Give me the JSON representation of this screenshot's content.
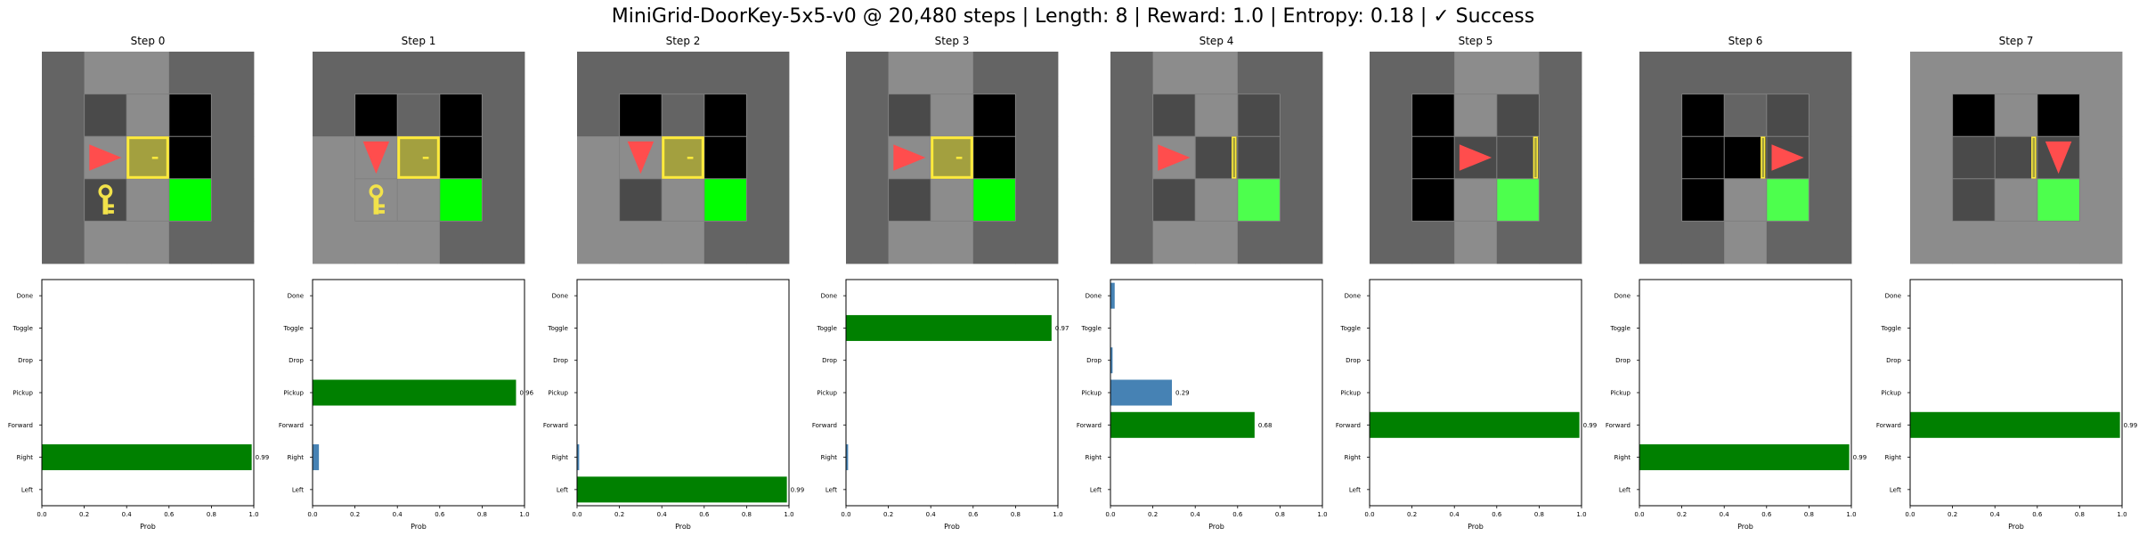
{
  "title": "MiniGrid-DoorKey-5x5-v0 @ 20,480 steps | Length: 8 | Reward: 1.0 | Entropy: 0.18 | ✓ Success",
  "colors": {
    "wall": "#646464",
    "floor": "#8c8c8c",
    "unseen": "#000000",
    "dark": "#4a4a4a",
    "gridline": "#808080",
    "goal": "#00ff00",
    "goal_dim": "#4dff4d",
    "door_fill": "#a3a03f",
    "door_border": "#ffeb3b",
    "key": "#f2e24a",
    "agent": "#ff4d4d",
    "bar_selected": "#008000",
    "bar_other": "#4682b4",
    "axes": "#000000"
  },
  "chart_data": [
    {
      "type": "bar",
      "orientation": "horizontal",
      "title": "Step 0",
      "categories": [
        "Left",
        "Right",
        "Forward",
        "Pickup",
        "Drop",
        "Toggle",
        "Done"
      ],
      "values": [
        0,
        0.99,
        0,
        0,
        0,
        0,
        0
      ],
      "selected": "Right",
      "value_labels": {
        "Right": "0.99"
      },
      "xlabel": "Prob",
      "xlim": [
        0,
        1
      ],
      "xticks": [
        "0.0",
        "0.2",
        "0.4",
        "0.6",
        "0.8",
        "1.0"
      ],
      "grid": false,
      "frame": {
        "cells": [
          [
            "wall",
            "floor",
            "floor",
            "wall",
            "wall"
          ],
          [
            "wall",
            "dark",
            "floor",
            "unseen",
            "wall"
          ],
          [
            "wall",
            "floor",
            "door",
            "unseen",
            "wall"
          ],
          [
            "wall",
            "dark",
            "floor",
            "goal",
            "wall"
          ],
          [
            "wall",
            "floor",
            "floor",
            "wall",
            "wall"
          ]
        ],
        "grid_rows": [
          1,
          3
        ],
        "grid_cols": [
          1,
          3
        ],
        "agent": {
          "row": 2,
          "col": 1,
          "dir": "right"
        },
        "key": {
          "row": 3,
          "col": 1
        },
        "door": {
          "row": 2,
          "col": 2,
          "state": "closed"
        }
      }
    },
    {
      "type": "bar",
      "orientation": "horizontal",
      "title": "Step 1",
      "categories": [
        "Left",
        "Right",
        "Forward",
        "Pickup",
        "Drop",
        "Toggle",
        "Done"
      ],
      "values": [
        0,
        0.03,
        0,
        0.96,
        0,
        0,
        0
      ],
      "selected": "Pickup",
      "value_labels": {
        "Pickup": "0.96"
      },
      "xlabel": "Prob",
      "xlim": [
        0,
        1
      ],
      "xticks": [
        "0.0",
        "0.2",
        "0.4",
        "0.6",
        "0.8",
        "1.0"
      ],
      "grid": false,
      "frame": {
        "cells": [
          [
            "wall",
            "wall",
            "wall",
            "wall",
            "wall"
          ],
          [
            "wall",
            "unseen",
            "wall",
            "unseen",
            "wall"
          ],
          [
            "floor",
            "floor",
            "door",
            "unseen",
            "wall"
          ],
          [
            "floor",
            "floor",
            "floor",
            "goal",
            "wall"
          ],
          [
            "floor",
            "floor",
            "floor",
            "wall",
            "wall"
          ]
        ],
        "grid_rows": [
          1,
          3
        ],
        "grid_cols": [
          1,
          3
        ],
        "agent": {
          "row": 2,
          "col": 1,
          "dir": "down"
        },
        "key": {
          "row": 3,
          "col": 1
        },
        "door": {
          "row": 2,
          "col": 2,
          "state": "closed"
        }
      }
    },
    {
      "type": "bar",
      "orientation": "horizontal",
      "title": "Step 2",
      "categories": [
        "Left",
        "Right",
        "Forward",
        "Pickup",
        "Drop",
        "Toggle",
        "Done"
      ],
      "values": [
        0.99,
        0.01,
        0,
        0,
        0,
        0,
        0
      ],
      "selected": "Left",
      "value_labels": {
        "Left": "0.99"
      },
      "xlabel": "Prob",
      "xlim": [
        0,
        1
      ],
      "xticks": [
        "0.0",
        "0.2",
        "0.4",
        "0.6",
        "0.8",
        "1.0"
      ],
      "grid": false,
      "frame": {
        "cells": [
          [
            "wall",
            "wall",
            "wall",
            "wall",
            "wall"
          ],
          [
            "wall",
            "unseen",
            "wall",
            "unseen",
            "wall"
          ],
          [
            "floor",
            "floor",
            "door",
            "unseen",
            "wall"
          ],
          [
            "floor",
            "dark",
            "floor",
            "goal",
            "wall"
          ],
          [
            "floor",
            "floor",
            "floor",
            "wall",
            "wall"
          ]
        ],
        "grid_rows": [
          1,
          3
        ],
        "grid_cols": [
          1,
          3
        ],
        "agent": {
          "row": 2,
          "col": 1,
          "dir": "down"
        },
        "key": null,
        "door": {
          "row": 2,
          "col": 2,
          "state": "closed"
        }
      }
    },
    {
      "type": "bar",
      "orientation": "horizontal",
      "title": "Step 3",
      "categories": [
        "Left",
        "Right",
        "Forward",
        "Pickup",
        "Drop",
        "Toggle",
        "Done"
      ],
      "values": [
        0,
        0.01,
        0,
        0,
        0,
        0.97,
        0
      ],
      "selected": "Toggle",
      "value_labels": {
        "Toggle": "0.97"
      },
      "xlabel": "Prob",
      "xlim": [
        0,
        1
      ],
      "xticks": [
        "0.0",
        "0.2",
        "0.4",
        "0.6",
        "0.8",
        "1.0"
      ],
      "grid": false,
      "frame": {
        "cells": [
          [
            "wall",
            "floor",
            "floor",
            "wall",
            "wall"
          ],
          [
            "wall",
            "dark",
            "floor",
            "unseen",
            "wall"
          ],
          [
            "wall",
            "floor",
            "door",
            "unseen",
            "wall"
          ],
          [
            "wall",
            "dark",
            "floor",
            "goal",
            "wall"
          ],
          [
            "wall",
            "floor",
            "floor",
            "wall",
            "wall"
          ]
        ],
        "grid_rows": [
          1,
          3
        ],
        "grid_cols": [
          1,
          3
        ],
        "agent": {
          "row": 2,
          "col": 1,
          "dir": "right"
        },
        "key": null,
        "door": {
          "row": 2,
          "col": 2,
          "state": "closed"
        }
      }
    },
    {
      "type": "bar",
      "orientation": "horizontal",
      "title": "Step 4",
      "categories": [
        "Left",
        "Right",
        "Forward",
        "Pickup",
        "Drop",
        "Toggle",
        "Done"
      ],
      "values": [
        0,
        0,
        0.68,
        0.29,
        0.01,
        0,
        0.02
      ],
      "selected": "Forward",
      "value_labels": {
        "Forward": "0.68",
        "Pickup": "0.29"
      },
      "xlabel": "Prob",
      "xlim": [
        0,
        1
      ],
      "xticks": [
        "0.0",
        "0.2",
        "0.4",
        "0.6",
        "0.8",
        "1.0"
      ],
      "grid": false,
      "frame": {
        "cells": [
          [
            "wall",
            "floor",
            "floor",
            "wall",
            "wall"
          ],
          [
            "wall",
            "dark",
            "floor",
            "dark",
            "wall"
          ],
          [
            "wall",
            "floor",
            "opendoor",
            "dark",
            "wall"
          ],
          [
            "wall",
            "dark",
            "floor",
            "goal_dim",
            "wall"
          ],
          [
            "wall",
            "floor",
            "floor",
            "wall",
            "wall"
          ]
        ],
        "grid_rows": [
          1,
          3
        ],
        "grid_cols": [
          1,
          3
        ],
        "agent": {
          "row": 2,
          "col": 1,
          "dir": "right"
        },
        "key": null,
        "door": {
          "row": 2,
          "col": 2,
          "state": "open"
        }
      }
    },
    {
      "type": "bar",
      "orientation": "horizontal",
      "title": "Step 5",
      "categories": [
        "Left",
        "Right",
        "Forward",
        "Pickup",
        "Drop",
        "Toggle",
        "Done"
      ],
      "values": [
        0,
        0,
        0.99,
        0,
        0,
        0,
        0
      ],
      "selected": "Forward",
      "value_labels": {
        "Forward": "0.99"
      },
      "xlabel": "Prob",
      "xlim": [
        0,
        1
      ],
      "xticks": [
        "0.0",
        "0.2",
        "0.4",
        "0.6",
        "0.8",
        "1.0"
      ],
      "grid": false,
      "frame": {
        "cells": [
          [
            "wall",
            "wall",
            "floor",
            "floor",
            "wall"
          ],
          [
            "wall",
            "unseen",
            "floor",
            "dark",
            "wall"
          ],
          [
            "wall",
            "unseen",
            "dark",
            "opendoor",
            "wall"
          ],
          [
            "wall",
            "unseen",
            "floor",
            "goal_dim",
            "wall"
          ],
          [
            "wall",
            "wall",
            "floor",
            "wall",
            "wall"
          ]
        ],
        "grid_rows": [
          1,
          3
        ],
        "grid_cols": [
          1,
          3
        ],
        "agent": {
          "row": 2,
          "col": 2,
          "dir": "right"
        },
        "key": null,
        "door": {
          "row": 2,
          "col": 3,
          "state": "open"
        }
      }
    },
    {
      "type": "bar",
      "orientation": "horizontal",
      "title": "Step 6",
      "categories": [
        "Left",
        "Right",
        "Forward",
        "Pickup",
        "Drop",
        "Toggle",
        "Done"
      ],
      "values": [
        0,
        0.99,
        0,
        0,
        0,
        0,
        0
      ],
      "selected": "Right",
      "value_labels": {
        "Right": "0.99"
      },
      "xlabel": "Prob",
      "xlim": [
        0,
        1
      ],
      "xticks": [
        "0.0",
        "0.2",
        "0.4",
        "0.6",
        "0.8",
        "1.0"
      ],
      "grid": false,
      "frame": {
        "cells": [
          [
            "wall",
            "wall",
            "wall",
            "wall",
            "wall"
          ],
          [
            "wall",
            "unseen",
            "wall",
            "dark",
            "wall"
          ],
          [
            "wall",
            "unseen",
            "unseen",
            "dark",
            "wall"
          ],
          [
            "wall",
            "unseen",
            "floor",
            "goal_dim",
            "wall"
          ],
          [
            "wall",
            "wall",
            "floor",
            "wall",
            "wall"
          ]
        ],
        "grid_rows": [
          1,
          3
        ],
        "grid_cols": [
          1,
          3
        ],
        "agent": {
          "row": 2,
          "col": 3,
          "dir": "right"
        },
        "key": null,
        "door": {
          "row": 2,
          "col": 2,
          "state": "open"
        }
      }
    },
    {
      "type": "bar",
      "orientation": "horizontal",
      "title": "Step 7",
      "categories": [
        "Left",
        "Right",
        "Forward",
        "Pickup",
        "Drop",
        "Toggle",
        "Done"
      ],
      "values": [
        0,
        0,
        0.99,
        0,
        0,
        0,
        0
      ],
      "selected": "Forward",
      "value_labels": {
        "Forward": "0.99"
      },
      "xlabel": "Prob",
      "xlim": [
        0,
        1
      ],
      "xticks": [
        "0.0",
        "0.2",
        "0.4",
        "0.6",
        "0.8",
        "1.0"
      ],
      "grid": false,
      "frame": {
        "cells": [
          [
            "floor",
            "floor",
            "floor",
            "floor",
            "floor"
          ],
          [
            "floor",
            "unseen",
            "floor",
            "unseen",
            "floor"
          ],
          [
            "floor",
            "dark",
            "dark",
            "dark",
            "floor"
          ],
          [
            "floor",
            "dark",
            "floor",
            "goal_dim",
            "floor"
          ],
          [
            "floor",
            "floor",
            "floor",
            "floor",
            "floor"
          ]
        ],
        "grid_rows": [
          1,
          3
        ],
        "grid_cols": [
          1,
          3
        ],
        "agent": {
          "row": 2,
          "col": 3,
          "dir": "down"
        },
        "key": null,
        "door": {
          "row": 2,
          "col": 2,
          "state": "open"
        }
      }
    }
  ]
}
